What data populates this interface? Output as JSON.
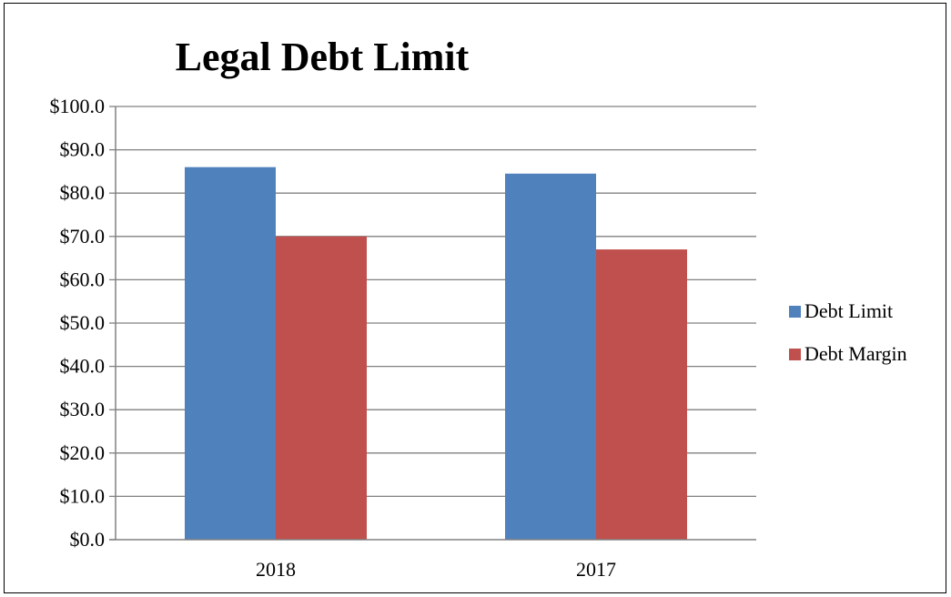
{
  "chart_data": {
    "type": "bar",
    "title": "Legal Debt Limit",
    "xlabel": "",
    "ylabel": "",
    "categories": [
      "2018",
      "2017"
    ],
    "series": [
      {
        "name": "Debt Limit",
        "values": [
          86.0,
          84.5
        ],
        "color": "#4F81BD"
      },
      {
        "name": "Debt Margin",
        "values": [
          70.0,
          67.0
        ],
        "color": "#C0504D"
      }
    ],
    "ylim": [
      0,
      100
    ],
    "y_ticks": [
      "$0.0",
      "$10.0",
      "$20.0",
      "$30.0",
      "$40.0",
      "$50.0",
      "$60.0",
      "$70.0",
      "$80.0",
      "$90.0",
      "$100.0"
    ],
    "grid": true,
    "legend_position": "right",
    "colors": {
      "gridline": "#808080",
      "axis": "#000000",
      "background": "#FFFFFF"
    }
  }
}
